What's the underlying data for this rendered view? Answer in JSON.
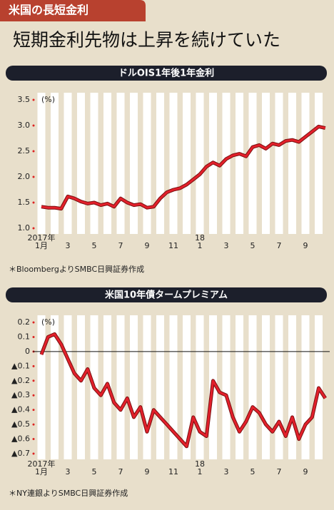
{
  "header": {
    "tag": "米国の長短金利",
    "title": "短期金利先物は上昇を続けていた"
  },
  "chart_data": [
    {
      "type": "line",
      "title": "ドルOIS1年後1年金利",
      "unit": "(%)",
      "source": "＊BloombergよりSMBC日興証券作成",
      "color": "#e3202b",
      "x_labels": [
        "1月",
        null,
        "3",
        null,
        "5",
        null,
        "7",
        null,
        "9",
        null,
        "11",
        null,
        "1",
        null,
        "3",
        null,
        "5",
        null,
        "7",
        null,
        "9",
        null
      ],
      "year_labels": [
        {
          "index": 0,
          "label": "2017年"
        },
        {
          "index": 12,
          "label": "18"
        }
      ],
      "values": [
        1.42,
        1.4,
        1.4,
        1.38,
        1.62,
        1.58,
        1.52,
        1.48,
        1.5,
        1.45,
        1.48,
        1.42,
        1.58,
        1.5,
        1.45,
        1.47,
        1.4,
        1.42,
        1.58,
        1.7,
        1.75,
        1.78,
        1.85,
        1.95,
        2.05,
        2.2,
        2.28,
        2.22,
        2.35,
        2.42,
        2.45,
        2.4,
        2.58,
        2.62,
        2.55,
        2.65,
        2.62,
        2.7,
        2.72,
        2.68,
        2.78,
        2.88,
        2.98,
        2.95
      ],
      "ylim": [
        1.0,
        3.5
      ],
      "yticks": [
        {
          "value": 1.0,
          "label": "1.0"
        },
        {
          "value": 1.5,
          "label": "1.5"
        },
        {
          "value": 2.0,
          "label": "2.0"
        },
        {
          "value": 2.5,
          "label": "2.5"
        },
        {
          "value": 3.0,
          "label": "3.0"
        },
        {
          "value": 3.5,
          "label": "3.5"
        }
      ]
    },
    {
      "type": "line",
      "title": "米国10年債タームプレミアム",
      "unit": "(%)",
      "source": "＊NY連銀よりSMBC日興証券作成",
      "color": "#e3202b",
      "zero_line": true,
      "x_labels": [
        "1月",
        null,
        "3",
        null,
        "5",
        null,
        "7",
        null,
        "9",
        null,
        "11",
        null,
        "1",
        null,
        "3",
        null,
        "5",
        null,
        "7",
        null,
        "9",
        null
      ],
      "year_labels": [
        {
          "index": 0,
          "label": "2017年"
        },
        {
          "index": 12,
          "label": "18"
        }
      ],
      "values": [
        -0.02,
        0.1,
        0.12,
        0.05,
        -0.05,
        -0.15,
        -0.2,
        -0.12,
        -0.25,
        -0.3,
        -0.22,
        -0.35,
        -0.4,
        -0.32,
        -0.45,
        -0.38,
        -0.55,
        -0.4,
        -0.45,
        -0.5,
        -0.55,
        -0.6,
        -0.65,
        -0.45,
        -0.55,
        -0.58,
        -0.2,
        -0.28,
        -0.3,
        -0.45,
        -0.55,
        -0.48,
        -0.38,
        -0.42,
        -0.5,
        -0.55,
        -0.48,
        -0.58,
        -0.45,
        -0.6,
        -0.5,
        -0.45,
        -0.25,
        -0.32
      ],
      "ylim": [
        -0.7,
        0.2
      ],
      "yticks": [
        {
          "value": -0.7,
          "label": "▲0.7"
        },
        {
          "value": -0.6,
          "label": "▲0.6"
        },
        {
          "value": -0.5,
          "label": "▲0.5"
        },
        {
          "value": -0.4,
          "label": "▲0.4"
        },
        {
          "value": -0.3,
          "label": "▲0.3"
        },
        {
          "value": -0.2,
          "label": "▲0.2"
        },
        {
          "value": -0.1,
          "label": "▲0.1"
        },
        0,
        0.1,
        0.2
      ]
    }
  ]
}
